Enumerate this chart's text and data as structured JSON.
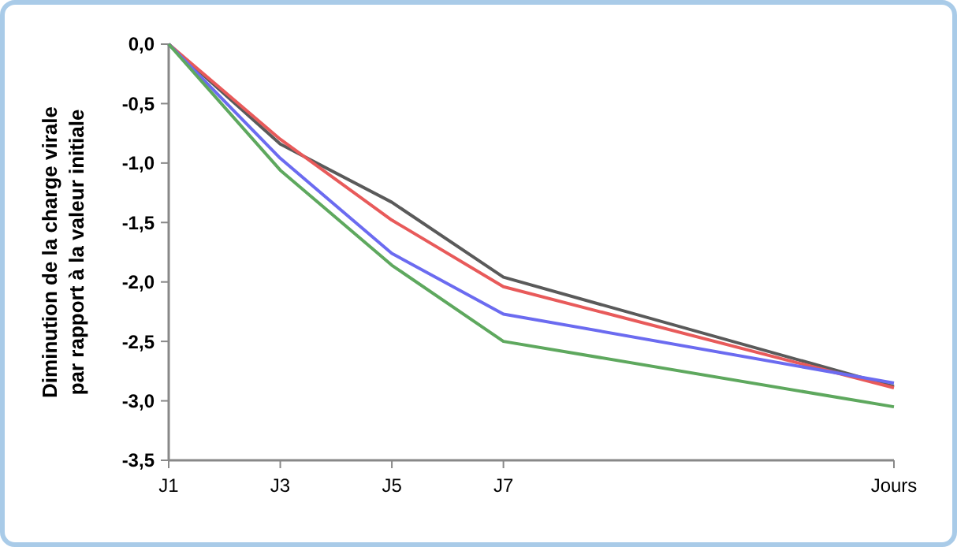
{
  "chart_data": {
    "type": "line",
    "ylabel": "Diminution de la charge virale\npar rapport à la valeur initiale",
    "categories": [
      "J1",
      null,
      "J3",
      null,
      "J5",
      null,
      "J7",
      null,
      null,
      null,
      null,
      null,
      null,
      "Jours"
    ],
    "ylim": [
      -3.5,
      0
    ],
    "yticks": [
      {
        "value": 0,
        "label": "0,0"
      },
      {
        "value": -0.5,
        "label": "-0,5"
      },
      {
        "value": -1,
        "label": "-1,0"
      },
      {
        "value": -1.5,
        "label": "-1,5"
      },
      {
        "value": -2,
        "label": "-2,0"
      },
      {
        "value": -2.5,
        "label": "-2,5"
      },
      {
        "value": -3,
        "label": "-3,0"
      },
      {
        "value": -3.5,
        "label": "-3,5"
      }
    ],
    "series": [
      {
        "color": "#5a5a5a",
        "values": [
          0,
          null,
          -0.84,
          null,
          -1.33,
          null,
          -1.96,
          null,
          null,
          null,
          null,
          null,
          null,
          -2.88
        ]
      },
      {
        "color": "#e85a5a",
        "values": [
          0,
          null,
          -0.8,
          null,
          -1.48,
          null,
          -2.04,
          null,
          null,
          null,
          null,
          null,
          null,
          -2.89
        ]
      },
      {
        "color": "#6b6bf0",
        "values": [
          0,
          null,
          -0.96,
          null,
          -1.76,
          null,
          -2.27,
          null,
          null,
          null,
          null,
          null,
          null,
          -2.85
        ]
      },
      {
        "color": "#5ea85e",
        "values": [
          0,
          null,
          -1.06,
          null,
          -1.86,
          null,
          -2.5,
          null,
          null,
          null,
          null,
          null,
          null,
          -3.05
        ]
      }
    ]
  }
}
